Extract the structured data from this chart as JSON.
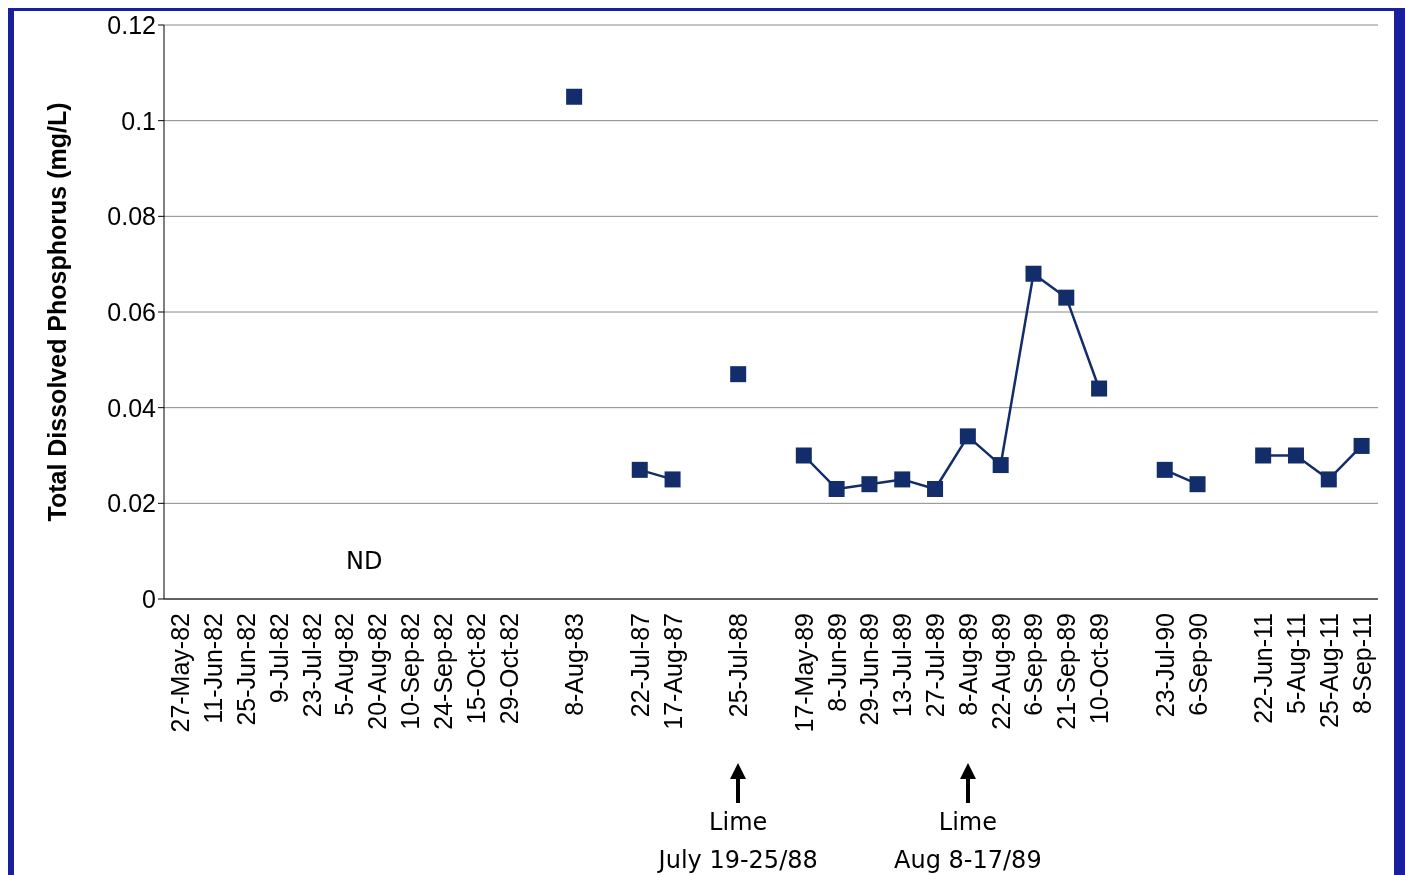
{
  "chart_data": {
    "type": "line",
    "ylabel": "Total Dissolved Phosphorus (mg/L)",
    "categories": [
      "27-May-82",
      "11-Jun-82",
      "25-Jun-82",
      "9-Jul-82",
      "23-Jul-82",
      "5-Aug-82",
      "20-Aug-82",
      "10-Sep-82",
      "24-Sep-82",
      "15-Oct-82",
      "29-Oct-82",
      null,
      "8-Aug-83",
      null,
      "22-Jul-87",
      "17-Aug-87",
      null,
      "25-Jul-88",
      null,
      "17-May-89",
      "8-Jun-89",
      "29-Jun-89",
      "13-Jul-89",
      "27-Jul-89",
      "8-Aug-89",
      "22-Aug-89",
      "6-Sep-89",
      "21-Sep-89",
      "10-Oct-89",
      null,
      "23-Jul-90",
      "6-Sep-90",
      null,
      "22-Jun-11",
      "5-Aug-11",
      "25-Aug-11",
      "8-Sep-11"
    ],
    "values": [
      null,
      null,
      null,
      null,
      null,
      null,
      null,
      null,
      null,
      null,
      null,
      null,
      0.105,
      null,
      0.027,
      0.025,
      null,
      0.047,
      null,
      0.03,
      0.023,
      0.024,
      0.025,
      0.023,
      0.034,
      0.028,
      0.068,
      0.063,
      0.044,
      null,
      0.027,
      0.024,
      null,
      0.03,
      0.03,
      0.025,
      0.032
    ],
    "color": "#132d6b",
    "marker": "square",
    "line_style": "solid",
    "grid": "y",
    "ylim": [
      0,
      0.12
    ],
    "yticks": [
      0,
      0.02,
      0.04,
      0.06,
      0.08,
      0.1,
      0.12
    ],
    "annotations": [
      "ND",
      "Lime\nJuly 19-25/88",
      "Lime\nAug 8-17/89"
    ]
  }
}
